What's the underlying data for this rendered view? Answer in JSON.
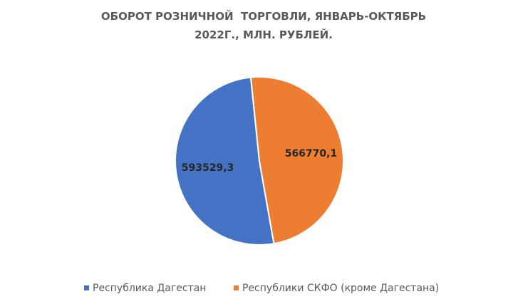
{
  "chart_data": {
    "type": "pie",
    "title": "ОБОРОТ РОЗНИЧНОЙ  ТОРГОВЛИ, ЯНВАРЬ-ОКТЯБРЬ  2022Г., МЛН. РУБЛЕЙ.",
    "categories": [
      "Республика Дагестан",
      "Республики СКФО (кроме Дагестана)"
    ],
    "values": [
      593529.3,
      566770.1
    ],
    "value_labels": [
      "593529,3",
      "566770,1"
    ],
    "colors": [
      "#4472c4",
      "#ed7d31"
    ],
    "legend": "bottom"
  }
}
